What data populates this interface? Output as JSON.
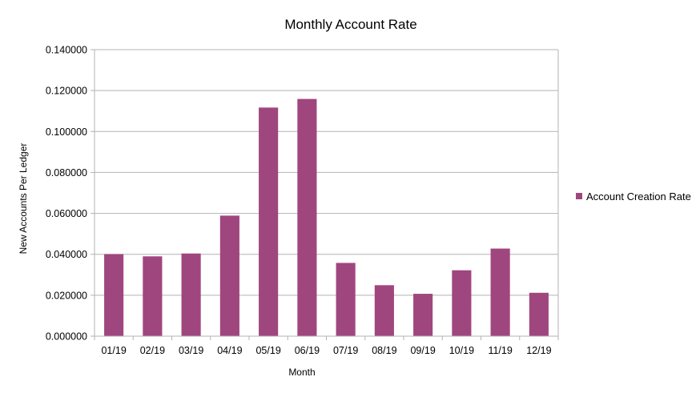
{
  "chart_data": {
    "type": "bar",
    "title": "Monthly Account Rate",
    "xlabel": "Month",
    "ylabel": "New Accounts Per Ledger",
    "categories": [
      "01/19",
      "02/19",
      "03/19",
      "04/19",
      "05/19",
      "06/19",
      "07/19",
      "08/19",
      "09/19",
      "10/19",
      "11/19",
      "12/19"
    ],
    "series": [
      {
        "name": "Account Creation Rate",
        "color": "#a0467e",
        "values": [
          0.0401,
          0.039,
          0.0404,
          0.0589,
          0.1117,
          0.1159,
          0.0358,
          0.0249,
          0.0207,
          0.0322,
          0.0428,
          0.0212
        ]
      }
    ],
    "ylim": [
      0,
      0.14
    ],
    "yticks": [
      "0.000000",
      "0.020000",
      "0.040000",
      "0.060000",
      "0.080000",
      "0.100000",
      "0.120000",
      "0.140000"
    ],
    "grid": true,
    "legend_position": "right"
  }
}
